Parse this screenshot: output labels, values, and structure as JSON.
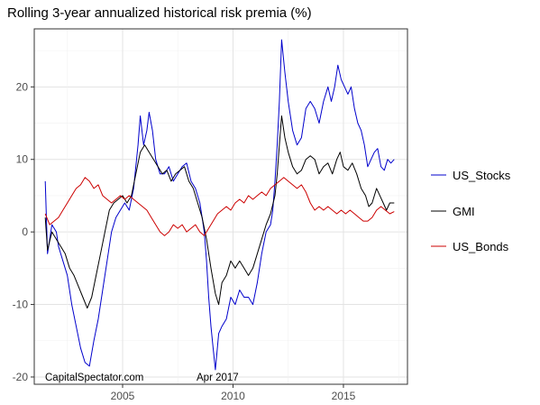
{
  "chart_data": {
    "type": "line",
    "title": "Rolling 3-year annualized historical risk premia (%)",
    "xlabel": "",
    "ylabel": "",
    "xlim": [
      2001.0,
      2017.9
    ],
    "ylim": [
      -21,
      28
    ],
    "x_ticks": [
      2005,
      2010,
      2015
    ],
    "y_ticks": [
      -20,
      -10,
      0,
      10,
      20
    ],
    "grid": true,
    "legend_position": "right",
    "annotations": [
      "CapitalSpectator.com",
      "Apr 2017"
    ],
    "series": [
      {
        "name": "US_Stocks",
        "color": "#0000cc",
        "points": [
          [
            2001.5,
            7
          ],
          [
            2001.6,
            -3
          ],
          [
            2001.8,
            1
          ],
          [
            2002.0,
            0
          ],
          [
            2002.1,
            -2
          ],
          [
            2002.3,
            -4
          ],
          [
            2002.5,
            -6
          ],
          [
            2002.7,
            -10
          ],
          [
            2002.9,
            -13
          ],
          [
            2003.1,
            -16
          ],
          [
            2003.3,
            -18
          ],
          [
            2003.5,
            -18.5
          ],
          [
            2003.7,
            -15
          ],
          [
            2003.9,
            -12
          ],
          [
            2004.1,
            -8
          ],
          [
            2004.3,
            -4
          ],
          [
            2004.5,
            0
          ],
          [
            2004.7,
            2
          ],
          [
            2004.9,
            3
          ],
          [
            2005.1,
            4
          ],
          [
            2005.3,
            3
          ],
          [
            2005.5,
            6
          ],
          [
            2005.7,
            12
          ],
          [
            2005.8,
            16
          ],
          [
            2005.95,
            12
          ],
          [
            2006.1,
            14
          ],
          [
            2006.2,
            16.5
          ],
          [
            2006.35,
            14
          ],
          [
            2006.5,
            10
          ],
          [
            2006.7,
            8
          ],
          [
            2006.9,
            8
          ],
          [
            2007.1,
            9
          ],
          [
            2007.3,
            7
          ],
          [
            2007.5,
            8
          ],
          [
            2007.7,
            9
          ],
          [
            2007.9,
            9.5
          ],
          [
            2008.1,
            7
          ],
          [
            2008.3,
            6
          ],
          [
            2008.5,
            4
          ],
          [
            2008.6,
            2
          ],
          [
            2008.7,
            0
          ],
          [
            2008.8,
            -4
          ],
          [
            2008.9,
            -9
          ],
          [
            2009.0,
            -13
          ],
          [
            2009.1,
            -16
          ],
          [
            2009.2,
            -19
          ],
          [
            2009.35,
            -14
          ],
          [
            2009.5,
            -13
          ],
          [
            2009.7,
            -12
          ],
          [
            2009.9,
            -9
          ],
          [
            2010.1,
            -10
          ],
          [
            2010.3,
            -8
          ],
          [
            2010.5,
            -9
          ],
          [
            2010.7,
            -9
          ],
          [
            2010.9,
            -10
          ],
          [
            2011.1,
            -7
          ],
          [
            2011.3,
            -3
          ],
          [
            2011.5,
            0
          ],
          [
            2011.7,
            1
          ],
          [
            2011.8,
            3
          ],
          [
            2011.9,
            7
          ],
          [
            2012.0,
            12
          ],
          [
            2012.1,
            18
          ],
          [
            2012.2,
            26.5
          ],
          [
            2012.35,
            22
          ],
          [
            2012.5,
            18
          ],
          [
            2012.7,
            14
          ],
          [
            2012.9,
            12
          ],
          [
            2013.1,
            13
          ],
          [
            2013.3,
            17
          ],
          [
            2013.5,
            18
          ],
          [
            2013.7,
            17
          ],
          [
            2013.9,
            15
          ],
          [
            2014.1,
            18
          ],
          [
            2014.3,
            20
          ],
          [
            2014.45,
            18
          ],
          [
            2014.6,
            20
          ],
          [
            2014.75,
            23
          ],
          [
            2014.9,
            21
          ],
          [
            2015.05,
            20
          ],
          [
            2015.2,
            19
          ],
          [
            2015.35,
            20
          ],
          [
            2015.5,
            17
          ],
          [
            2015.65,
            15
          ],
          [
            2015.8,
            14
          ],
          [
            2015.95,
            12
          ],
          [
            2016.1,
            9
          ],
          [
            2016.25,
            10
          ],
          [
            2016.4,
            11
          ],
          [
            2016.55,
            11.5
          ],
          [
            2016.7,
            9
          ],
          [
            2016.85,
            8.5
          ],
          [
            2017.0,
            10
          ],
          [
            2017.15,
            9.5
          ],
          [
            2017.3,
            10
          ]
        ]
      },
      {
        "name": "GMI",
        "color": "#000000",
        "points": [
          [
            2001.5,
            2
          ],
          [
            2001.6,
            -2.5
          ],
          [
            2001.8,
            0
          ],
          [
            2002.0,
            -1
          ],
          [
            2002.2,
            -2
          ],
          [
            2002.4,
            -3
          ],
          [
            2002.6,
            -5
          ],
          [
            2002.8,
            -6
          ],
          [
            2003.0,
            -7.5
          ],
          [
            2003.2,
            -9
          ],
          [
            2003.4,
            -10.5
          ],
          [
            2003.6,
            -9
          ],
          [
            2003.8,
            -6
          ],
          [
            2004.0,
            -3
          ],
          [
            2004.2,
            0
          ],
          [
            2004.4,
            3
          ],
          [
            2004.6,
            4
          ],
          [
            2004.8,
            4.5
          ],
          [
            2005.0,
            5
          ],
          [
            2005.2,
            4
          ],
          [
            2005.4,
            5
          ],
          [
            2005.6,
            8
          ],
          [
            2005.8,
            11
          ],
          [
            2006.0,
            12
          ],
          [
            2006.2,
            11
          ],
          [
            2006.4,
            10
          ],
          [
            2006.6,
            9
          ],
          [
            2006.8,
            8
          ],
          [
            2007.0,
            8.5
          ],
          [
            2007.2,
            7
          ],
          [
            2007.4,
            8
          ],
          [
            2007.6,
            8.5
          ],
          [
            2007.8,
            9
          ],
          [
            2008.0,
            7
          ],
          [
            2008.2,
            6
          ],
          [
            2008.4,
            4
          ],
          [
            2008.6,
            2
          ],
          [
            2008.8,
            -1
          ],
          [
            2009.0,
            -5
          ],
          [
            2009.2,
            -8.5
          ],
          [
            2009.35,
            -10
          ],
          [
            2009.5,
            -7
          ],
          [
            2009.7,
            -6
          ],
          [
            2009.9,
            -4
          ],
          [
            2010.1,
            -5
          ],
          [
            2010.3,
            -4
          ],
          [
            2010.5,
            -5
          ],
          [
            2010.7,
            -6
          ],
          [
            2010.9,
            -5
          ],
          [
            2011.1,
            -3
          ],
          [
            2011.3,
            -1
          ],
          [
            2011.5,
            1
          ],
          [
            2011.7,
            2.5
          ],
          [
            2011.9,
            5
          ],
          [
            2012.0,
            8
          ],
          [
            2012.1,
            12
          ],
          [
            2012.2,
            16
          ],
          [
            2012.35,
            13
          ],
          [
            2012.5,
            11
          ],
          [
            2012.7,
            9
          ],
          [
            2012.9,
            8
          ],
          [
            2013.1,
            8.5
          ],
          [
            2013.3,
            10
          ],
          [
            2013.5,
            10.5
          ],
          [
            2013.7,
            10
          ],
          [
            2013.9,
            8
          ],
          [
            2014.1,
            9
          ],
          [
            2014.3,
            9.5
          ],
          [
            2014.5,
            8
          ],
          [
            2014.7,
            10
          ],
          [
            2014.85,
            11
          ],
          [
            2015.0,
            9
          ],
          [
            2015.2,
            8.5
          ],
          [
            2015.4,
            9.5
          ],
          [
            2015.6,
            8
          ],
          [
            2015.8,
            6
          ],
          [
            2016.0,
            5
          ],
          [
            2016.15,
            3.5
          ],
          [
            2016.3,
            4
          ],
          [
            2016.5,
            6
          ],
          [
            2016.65,
            5
          ],
          [
            2016.8,
            4
          ],
          [
            2016.95,
            3
          ],
          [
            2017.1,
            4
          ],
          [
            2017.3,
            4
          ]
        ]
      },
      {
        "name": "US_Bonds",
        "color": "#cc0000",
        "points": [
          [
            2001.5,
            2.5
          ],
          [
            2001.7,
            1
          ],
          [
            2001.9,
            1.5
          ],
          [
            2002.1,
            2
          ],
          [
            2002.3,
            3
          ],
          [
            2002.5,
            4
          ],
          [
            2002.7,
            5
          ],
          [
            2002.9,
            6
          ],
          [
            2003.1,
            6.5
          ],
          [
            2003.3,
            7.5
          ],
          [
            2003.5,
            7
          ],
          [
            2003.7,
            6
          ],
          [
            2003.9,
            6.5
          ],
          [
            2004.1,
            5
          ],
          [
            2004.3,
            4.5
          ],
          [
            2004.5,
            4
          ],
          [
            2004.7,
            4.5
          ],
          [
            2004.9,
            5
          ],
          [
            2005.1,
            4.5
          ],
          [
            2005.3,
            5
          ],
          [
            2005.5,
            4.5
          ],
          [
            2005.7,
            4
          ],
          [
            2005.9,
            3.5
          ],
          [
            2006.1,
            3
          ],
          [
            2006.3,
            2
          ],
          [
            2006.5,
            1
          ],
          [
            2006.7,
            0
          ],
          [
            2006.9,
            -0.5
          ],
          [
            2007.1,
            0
          ],
          [
            2007.3,
            1
          ],
          [
            2007.5,
            0.5
          ],
          [
            2007.7,
            1
          ],
          [
            2007.9,
            0
          ],
          [
            2008.1,
            0.5
          ],
          [
            2008.3,
            1
          ],
          [
            2008.5,
            0
          ],
          [
            2008.7,
            -0.5
          ],
          [
            2008.9,
            0.5
          ],
          [
            2009.1,
            1.5
          ],
          [
            2009.3,
            2.5
          ],
          [
            2009.5,
            3
          ],
          [
            2009.7,
            3.5
          ],
          [
            2009.9,
            3
          ],
          [
            2010.1,
            4
          ],
          [
            2010.3,
            4.5
          ],
          [
            2010.5,
            4
          ],
          [
            2010.7,
            5
          ],
          [
            2010.9,
            4.5
          ],
          [
            2011.1,
            5
          ],
          [
            2011.3,
            5.5
          ],
          [
            2011.5,
            5
          ],
          [
            2011.7,
            6
          ],
          [
            2011.9,
            6.5
          ],
          [
            2012.1,
            7
          ],
          [
            2012.3,
            7.5
          ],
          [
            2012.5,
            7
          ],
          [
            2012.7,
            6.5
          ],
          [
            2012.9,
            6
          ],
          [
            2013.1,
            6.5
          ],
          [
            2013.3,
            5.5
          ],
          [
            2013.5,
            4
          ],
          [
            2013.7,
            3
          ],
          [
            2013.9,
            3.5
          ],
          [
            2014.1,
            3
          ],
          [
            2014.3,
            3.5
          ],
          [
            2014.5,
            3
          ],
          [
            2014.7,
            2.5
          ],
          [
            2014.9,
            3
          ],
          [
            2015.1,
            2.5
          ],
          [
            2015.3,
            3
          ],
          [
            2015.5,
            2.5
          ],
          [
            2015.7,
            2
          ],
          [
            2015.9,
            1.5
          ],
          [
            2016.1,
            1.5
          ],
          [
            2016.3,
            2
          ],
          [
            2016.5,
            3
          ],
          [
            2016.7,
            3.5
          ],
          [
            2016.9,
            3
          ],
          [
            2017.1,
            2.5
          ],
          [
            2017.3,
            2.8
          ]
        ]
      }
    ]
  }
}
